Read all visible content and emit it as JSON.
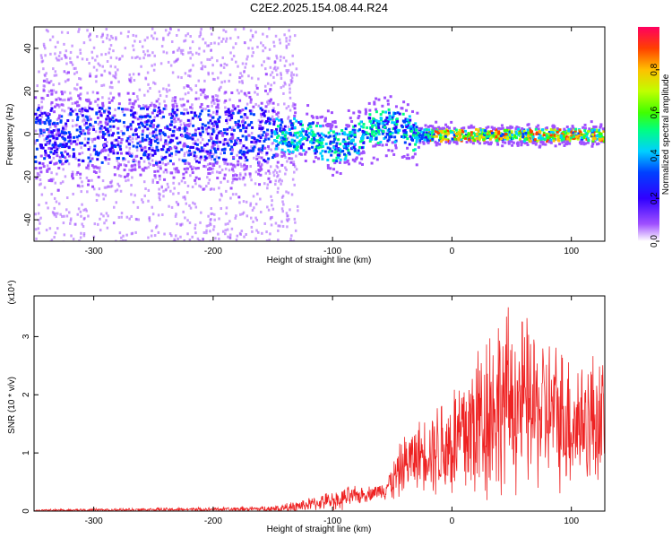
{
  "title": "C2E2.2025.154.08.44.R24",
  "chart_data": [
    {
      "type": "heatmap",
      "title": "C2E2.2025.154.08.44.R24",
      "xlabel": "Height of straight line (km)",
      "ylabel": "Frequency (Hz)",
      "xlim": [
        -350,
        128
      ],
      "ylim": [
        -50,
        50
      ],
      "xticks": [
        "-300",
        "-200",
        "-100",
        "0",
        "100"
      ],
      "yticks": [
        "-40",
        "-20",
        "0",
        "20",
        "40"
      ],
      "colorbar": {
        "label": "Normalized spectral amplitude",
        "range": [
          0,
          1
        ],
        "ticks": [
          "0.0",
          "0.2",
          "0.4",
          "0.6",
          "0.8"
        ],
        "colors": [
          "#ffffff",
          "#a050ff",
          "#3000ff",
          "#0040ff",
          "#00d0ff",
          "#00ff80",
          "#40ff00",
          "#c0ff00",
          "#ffc000",
          "#ff4000",
          "#ff0060"
        ]
      },
      "frequency_band_center_hz": 0,
      "diffuse_scatter_region_km": [
        -350,
        -150
      ]
    },
    {
      "type": "line",
      "xlabel": "Height of straight line (km)",
      "ylabel": "SNR (10 * v/v)",
      "y_multiplier": "(x10⁴)",
      "xlim": [
        -350,
        128
      ],
      "ylim": [
        0,
        3.7
      ],
      "xticks": [
        "-300",
        "-200",
        "-100",
        "0",
        "100"
      ],
      "yticks": [
        "0",
        "1",
        "2",
        "3"
      ],
      "color": "#ee2222",
      "series": [
        {
          "x": [
            -350,
            -300,
            -200,
            -150,
            -130,
            -110,
            -90,
            -70,
            -60,
            -50,
            -40,
            -30,
            -20,
            -10,
            0,
            10,
            20,
            30,
            40,
            50,
            60,
            70,
            80,
            90,
            100,
            110,
            120,
            128
          ],
          "y": [
            0.01,
            0.02,
            0.03,
            0.04,
            0.08,
            0.15,
            0.22,
            0.3,
            0.35,
            0.5,
            0.8,
            0.95,
            1.05,
            1.1,
            1.15,
            1.3,
            1.5,
            1.75,
            1.85,
            1.9,
            1.85,
            1.75,
            1.7,
            1.65,
            1.55,
            1.55,
            1.6,
            1.6
          ],
          "upper_envelope": [
            0.03,
            0.05,
            0.07,
            0.1,
            0.2,
            0.3,
            0.45,
            0.45,
            0.5,
            0.9,
            1.4,
            1.6,
            1.8,
            2.2,
            2.4,
            2.9,
            3.2,
            3.7,
            3.7,
            3.7,
            3.6,
            3.4,
            3.2,
            3.1,
            3.0,
            2.9,
            3.0,
            2.8
          ]
        }
      ]
    }
  ]
}
